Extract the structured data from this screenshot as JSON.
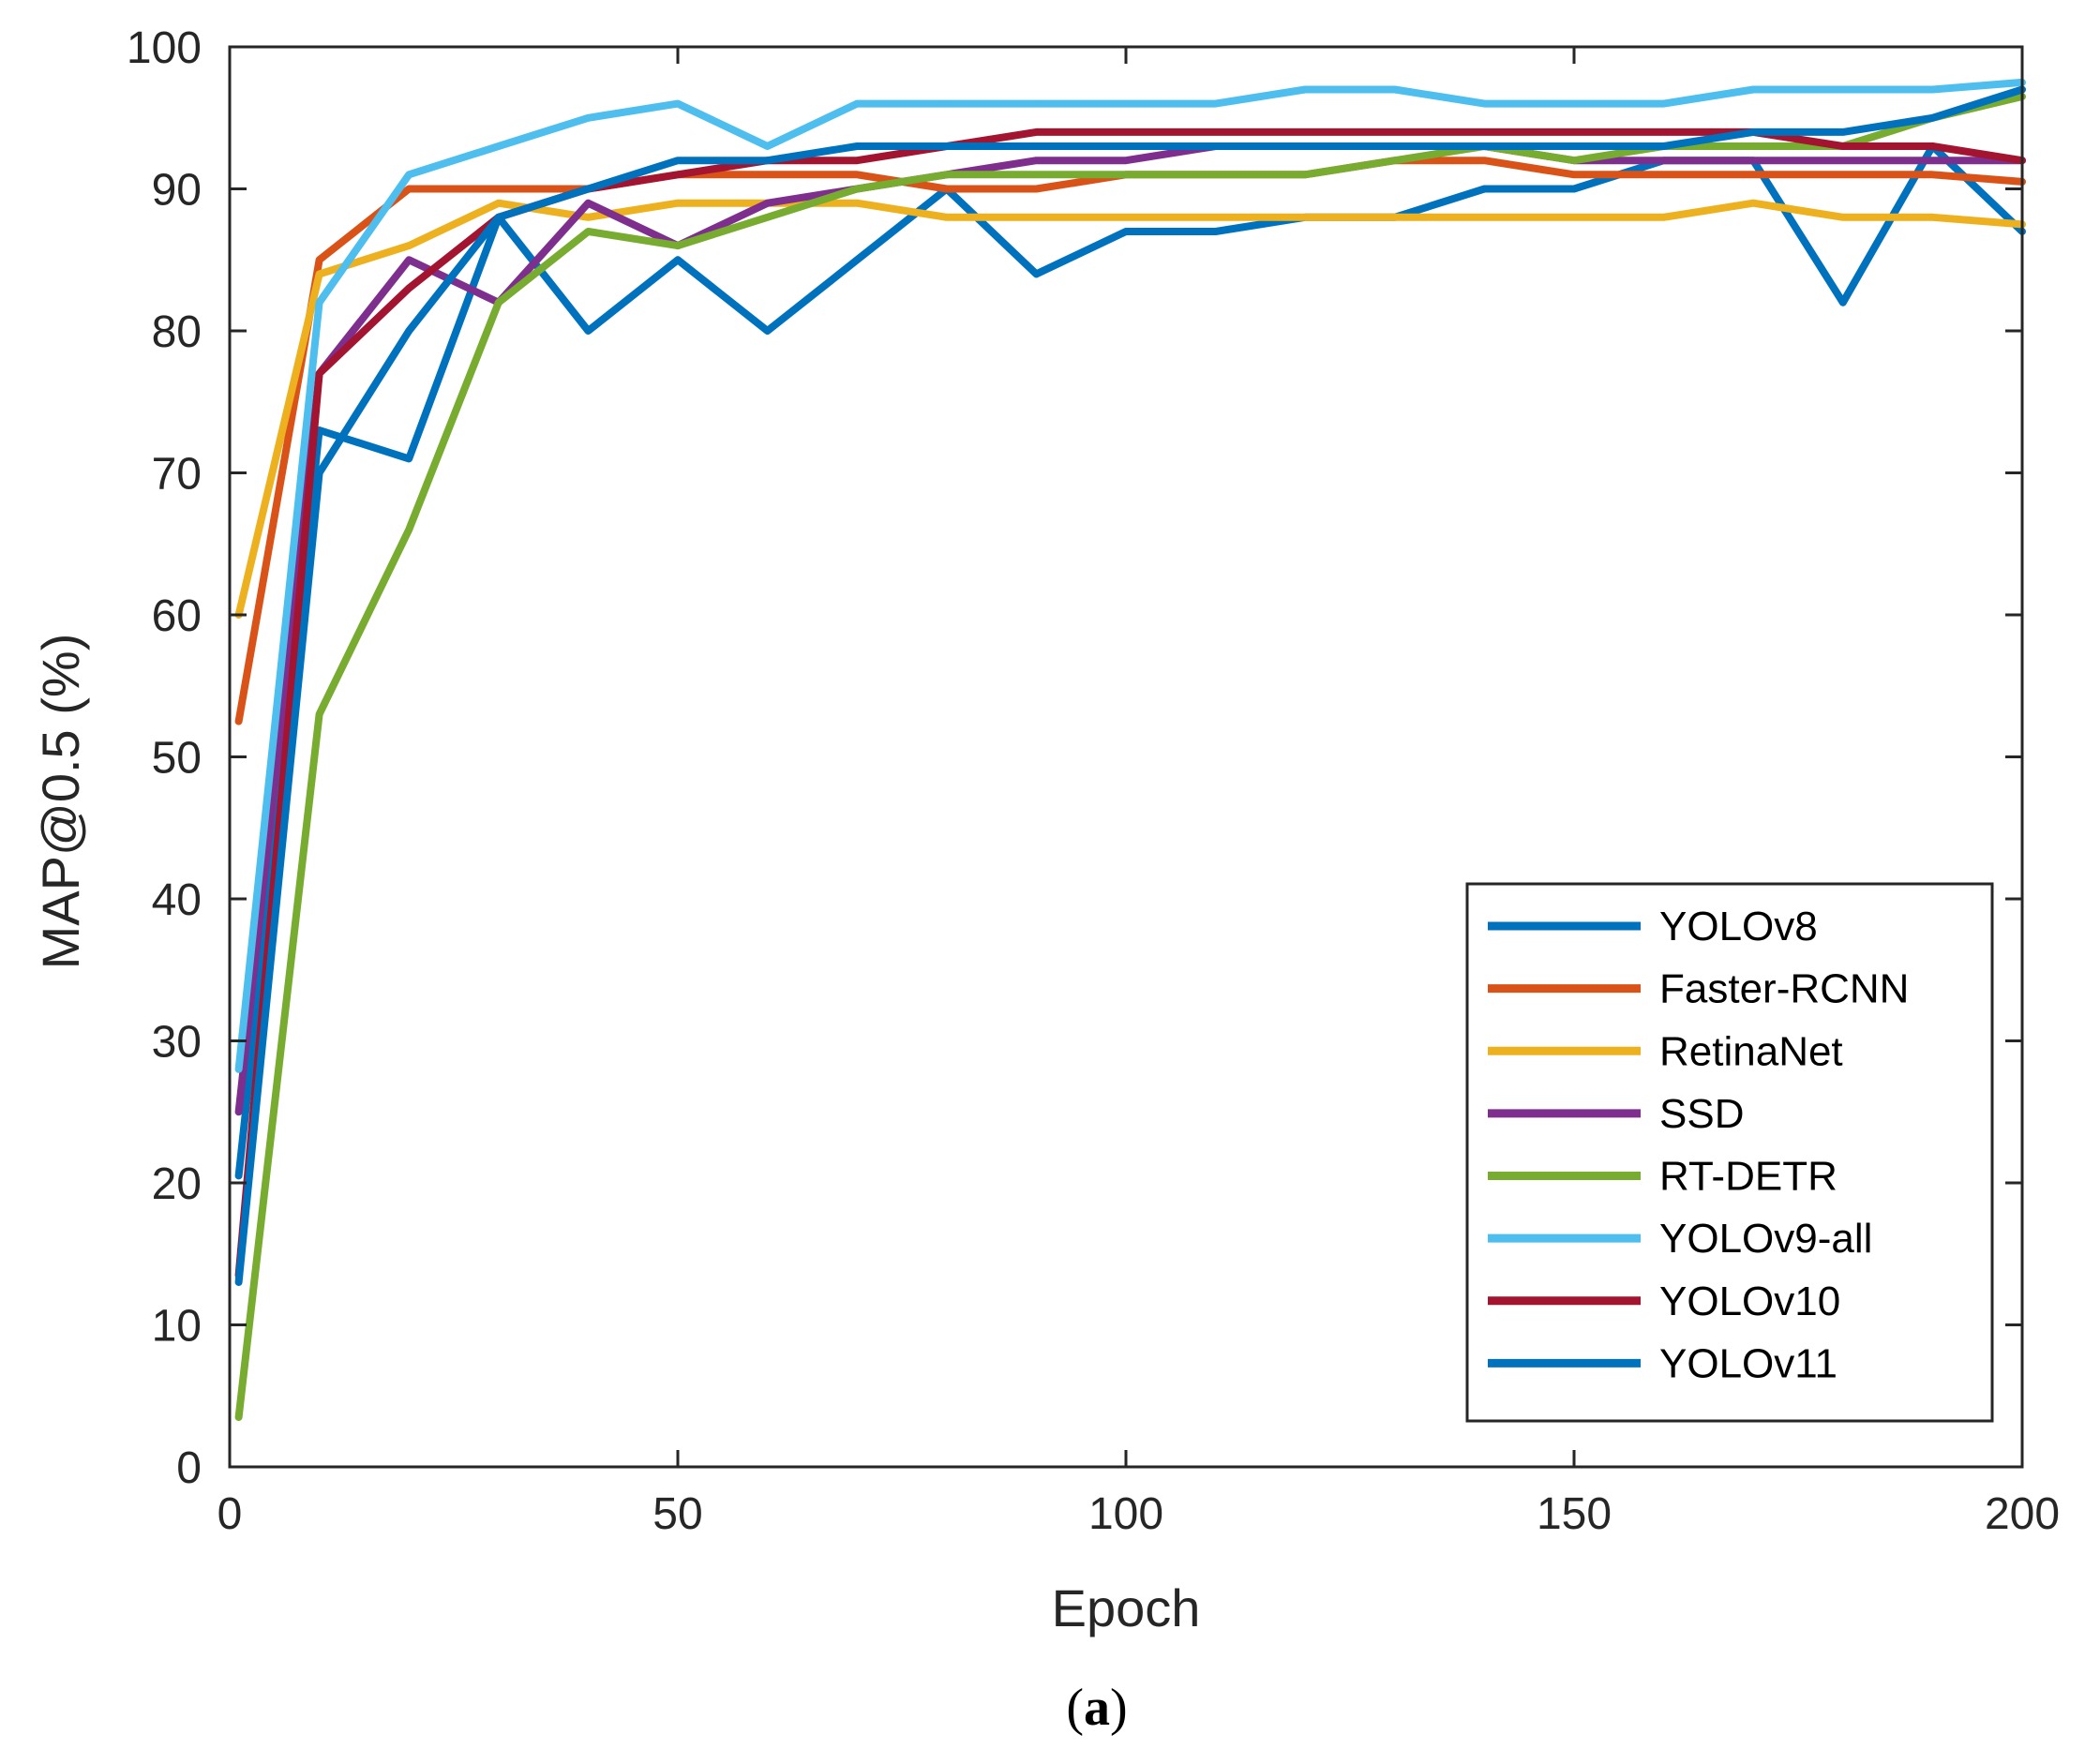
{
  "caption": {
    "open": "(",
    "letter": "a",
    "close": ")"
  },
  "chart_data": {
    "type": "line",
    "title": "",
    "xlabel": "Epoch",
    "ylabel": "MAP@0.5 (%)",
    "xlim": [
      0,
      200
    ],
    "ylim": [
      0,
      100
    ],
    "xticks": [
      0,
      50,
      100,
      150,
      200
    ],
    "yticks": [
      0,
      10,
      20,
      30,
      40,
      50,
      60,
      70,
      80,
      90,
      100
    ],
    "grid": false,
    "legend_position": "bottom-right",
    "x": [
      1,
      10,
      20,
      30,
      40,
      50,
      60,
      70,
      80,
      90,
      100,
      110,
      120,
      130,
      140,
      150,
      160,
      170,
      180,
      190,
      200
    ],
    "series": [
      {
        "name": "YOLOv8",
        "color": "#0072BD",
        "values": [
          20.5,
          73,
          71,
          88,
          80,
          85,
          80,
          85,
          90,
          84,
          87,
          87,
          88,
          88,
          90,
          90,
          92,
          92,
          82,
          93,
          87
        ]
      },
      {
        "name": "Faster-RCNN",
        "color": "#D95319",
        "values": [
          52.5,
          85,
          90,
          90,
          90,
          91,
          91,
          91,
          90,
          90,
          91,
          91,
          91,
          92,
          92,
          91,
          91,
          91,
          91,
          91,
          90.5
        ]
      },
      {
        "name": "RetinaNet",
        "color": "#EDB120",
        "values": [
          60,
          84,
          86,
          89,
          88,
          89,
          89,
          89,
          88,
          88,
          88,
          88,
          88,
          88,
          88,
          88,
          88,
          89,
          88,
          88,
          87.5
        ]
      },
      {
        "name": "SSD",
        "color": "#7E2F8E",
        "values": [
          25,
          77,
          85,
          82,
          89,
          86,
          89,
          90,
          91,
          92,
          92,
          93,
          93,
          93,
          93,
          92,
          92,
          92,
          92,
          92,
          92
        ]
      },
      {
        "name": "RT-DETR",
        "color": "#77AC30",
        "values": [
          3.5,
          53,
          66,
          82,
          87,
          86,
          88,
          90,
          91,
          91,
          91,
          91,
          91,
          92,
          93,
          92,
          93,
          93,
          93,
          95,
          96.5
        ]
      },
      {
        "name": "YOLOv9-all",
        "color": "#4DBEEE",
        "values": [
          28,
          82,
          91,
          93,
          95,
          96,
          93,
          96,
          96,
          96,
          96,
          96,
          97,
          97,
          96,
          96,
          96,
          97,
          97,
          97,
          97.5
        ]
      },
      {
        "name": "YOLOv10",
        "color": "#A2142F",
        "values": [
          13.5,
          77,
          83,
          88,
          90,
          91,
          92,
          92,
          93,
          94,
          94,
          94,
          94,
          94,
          94,
          94,
          94,
          94,
          93,
          93,
          92
        ]
      },
      {
        "name": "YOLOv11",
        "color": "#0072BD",
        "values": [
          13,
          70,
          80,
          88,
          90,
          92,
          92,
          93,
          93,
          93,
          93,
          93,
          93,
          93,
          93,
          93,
          93,
          94,
          94,
          95,
          97
        ]
      }
    ]
  }
}
